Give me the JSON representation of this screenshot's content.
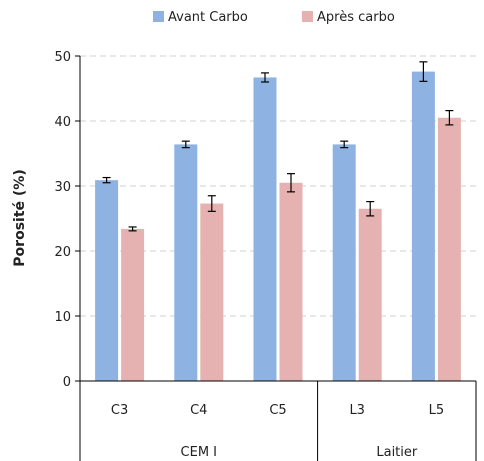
{
  "chart_data": {
    "type": "bar",
    "ylabel": "Porosité (%)",
    "ylim": [
      0,
      50
    ],
    "yticks": [
      0,
      10,
      20,
      30,
      40,
      50
    ],
    "grid": true,
    "legend_position": "top",
    "categories": [
      "C3",
      "C4",
      "C5",
      "L3",
      "L5"
    ],
    "groups": [
      {
        "label": "CEM I",
        "categories": [
          "C3",
          "C4",
          "C5"
        ]
      },
      {
        "label": "Laitier",
        "categories": [
          "L3",
          "L5"
        ]
      }
    ],
    "series": [
      {
        "name": "Avant Carbo",
        "color": "#8EB3E3",
        "values": [
          30.9,
          36.4,
          46.7,
          36.4,
          47.6
        ],
        "errors": [
          0.4,
          0.5,
          0.7,
          0.5,
          1.5
        ]
      },
      {
        "name": "Après carbo",
        "color": "#E6B2B1",
        "values": [
          23.4,
          27.3,
          30.5,
          26.5,
          40.5
        ],
        "errors": [
          0.3,
          1.2,
          1.4,
          1.1,
          1.1
        ]
      }
    ]
  }
}
